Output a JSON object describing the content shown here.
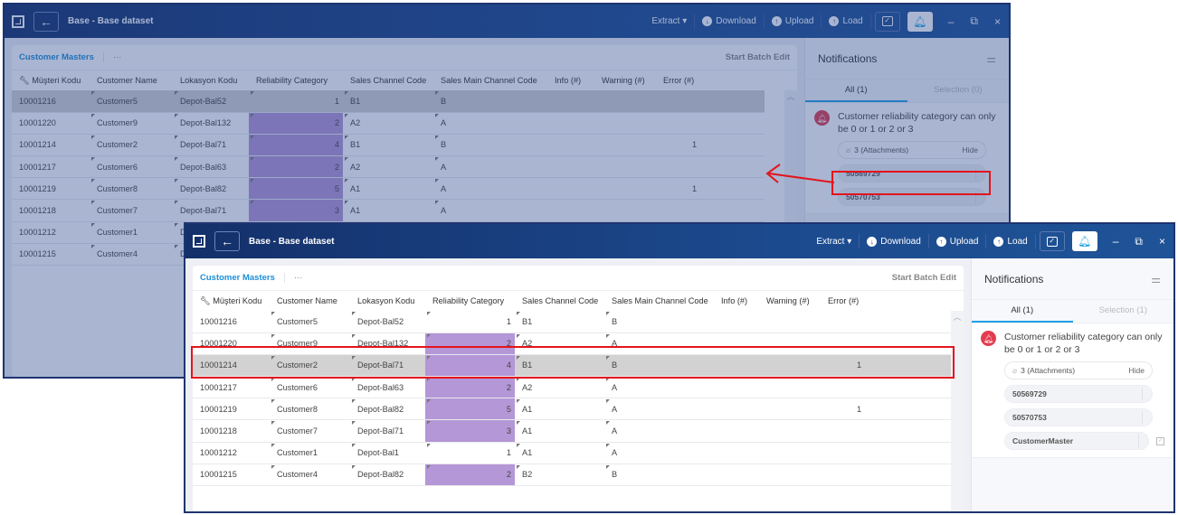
{
  "app": {
    "title": "Base - Base dataset",
    "toolbar": {
      "extract": "Extract",
      "download": "Download",
      "upload": "Upload",
      "load": "Load"
    },
    "window_controls": {
      "minimize": "–",
      "restore": "⧉",
      "close": "×"
    }
  },
  "grid": {
    "tab": "Customer Masters",
    "more": "···",
    "batch_edit": "Start Batch Edit",
    "columns": [
      "Müşteri Kodu",
      "Customer Name",
      "Lokasyon Kodu",
      "Reliability Category",
      "Sales Channel Code",
      "Sales Main Channel Code",
      "Info (#)",
      "Warning (#)",
      "Error (#)"
    ],
    "rows": [
      {
        "kodu": "10001216",
        "name": "Customer5",
        "lok": "Depot-Bal52",
        "rel": "1",
        "sc": "B1",
        "smc": "B",
        "info": "",
        "warn": "",
        "err": ""
      },
      {
        "kodu": "10001220",
        "name": "Customer9",
        "lok": "Depot-Bal132",
        "rel": "2",
        "sc": "A2",
        "smc": "A",
        "info": "",
        "warn": "",
        "err": ""
      },
      {
        "kodu": "10001214",
        "name": "Customer2",
        "lok": "Depot-Bal71",
        "rel": "4",
        "sc": "B1",
        "smc": "B",
        "info": "",
        "warn": "",
        "err": "1"
      },
      {
        "kodu": "10001217",
        "name": "Customer6",
        "lok": "Depot-Bal63",
        "rel": "2",
        "sc": "A2",
        "smc": "A",
        "info": "",
        "warn": "",
        "err": ""
      },
      {
        "kodu": "10001219",
        "name": "Customer8",
        "lok": "Depot-Bal82",
        "rel": "5",
        "sc": "A1",
        "smc": "A",
        "info": "",
        "warn": "",
        "err": "1"
      },
      {
        "kodu": "10001218",
        "name": "Customer7",
        "lok": "Depot-Bal71",
        "rel": "3",
        "sc": "A1",
        "smc": "A",
        "info": "",
        "warn": "",
        "err": ""
      },
      {
        "kodu": "10001212",
        "name": "Customer1",
        "lok": "Depot-Bal1",
        "rel": "1",
        "sc": "A1",
        "smc": "A",
        "info": "",
        "warn": "",
        "err": ""
      },
      {
        "kodu": "10001215",
        "name": "Customer4",
        "lok": "Depot-Bal82",
        "rel": "2",
        "sc": "B2",
        "smc": "B",
        "info": "",
        "warn": "",
        "err": ""
      }
    ]
  },
  "notifications_back": {
    "title": "Notifications",
    "tab_all": "All (1)",
    "tab_selection": "Selection (0)",
    "message": "Customer reliability category can only be 0 or 1 or 2 or 3",
    "attachments": "3 (Attachments)",
    "hide": "Hide",
    "ids": [
      "50569729",
      "50570753"
    ]
  },
  "notifications_front": {
    "title": "Notifications",
    "tab_all": "All (1)",
    "tab_selection": "Selection (1)",
    "message": "Customer reliability category can only be 0 or 1 or 2 or 3",
    "attachments": "3 (Attachments)",
    "hide": "Hide",
    "ids": [
      "50569729",
      "50570753",
      "CustomerMaster"
    ]
  },
  "colors": {
    "titlebar": "#1c4a8e",
    "accent": "#1ea3e8",
    "highlight_cell": "#b497d6",
    "selected_row": "#d2d2d2",
    "annotation": "#e4141c",
    "error_bell": "#e43c4f"
  }
}
